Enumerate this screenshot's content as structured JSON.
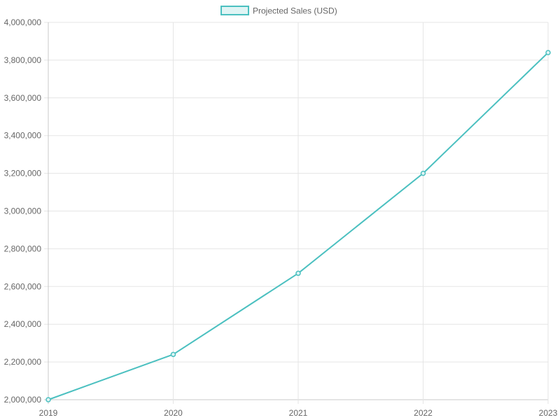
{
  "chart_data": {
    "type": "line",
    "x": [
      "2019",
      "2020",
      "2021",
      "2022",
      "2023"
    ],
    "series": [
      {
        "name": "Projected Sales (USD)",
        "values": [
          2000000,
          2240000,
          2670000,
          3200000,
          3840000
        ],
        "color": "#4bc0c0",
        "fill": "#dff4f4"
      }
    ],
    "y_ticks": [
      "2,000,000",
      "2,200,000",
      "2,400,000",
      "2,600,000",
      "2,800,000",
      "3,000,000",
      "3,200,000",
      "3,400,000",
      "3,600,000",
      "3,800,000",
      "4,000,000"
    ],
    "ylim": [
      2000000,
      4000000
    ],
    "title": "",
    "xlabel": "",
    "ylabel": "",
    "grid": true,
    "legend_position": "top"
  }
}
